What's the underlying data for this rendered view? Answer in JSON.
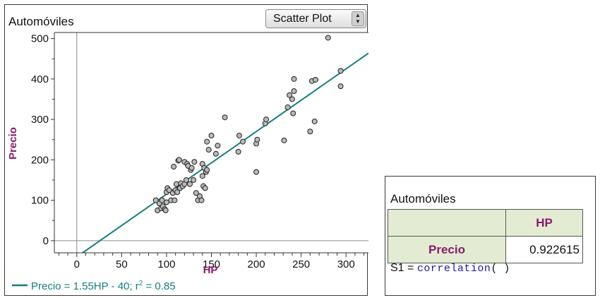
{
  "graph": {
    "title": "Automóviles",
    "plot_type": "Scatter Plot",
    "equation": "Precio = 1.55HP - 40; r",
    "r2_exponent": "2",
    "r2_value": " = 0.85"
  },
  "table": {
    "title": "Automóviles",
    "column_header": "HP",
    "row_header": "Precio",
    "value": "0.922615",
    "formula_prefix": "S1 = ",
    "formula_func": "correlation",
    "formula_args": "(    )"
  },
  "colors": {
    "line": "#14807e",
    "point_fill": "#b9b9b9",
    "axis_label": "#8a1a6e",
    "header_bg": "#e3ecd3"
  },
  "chart_data": {
    "type": "scatter",
    "title": "Automóviles",
    "xlabel": "HP",
    "ylabel": "Precio",
    "xlim": [
      -25,
      325
    ],
    "ylim": [
      -30,
      515
    ],
    "xticks": [
      0,
      50,
      100,
      150,
      200,
      250,
      300
    ],
    "yticks": [
      0,
      100,
      200,
      300,
      400,
      500
    ],
    "regression": {
      "slope": 1.55,
      "intercept": -40,
      "r2": 0.85
    },
    "legend": "bottom",
    "points": [
      [
        88,
        100
      ],
      [
        90,
        75
      ],
      [
        92,
        92
      ],
      [
        94,
        80
      ],
      [
        95,
        100
      ],
      [
        96,
        85
      ],
      [
        98,
        78
      ],
      [
        99,
        75
      ],
      [
        100,
        95
      ],
      [
        100,
        120
      ],
      [
        101,
        130
      ],
      [
        103,
        125
      ],
      [
        105,
        100
      ],
      [
        107,
        118
      ],
      [
        108,
        183
      ],
      [
        109,
        100
      ],
      [
        110,
        125
      ],
      [
        111,
        140
      ],
      [
        112,
        120
      ],
      [
        113,
        198
      ],
      [
        114,
        200
      ],
      [
        115,
        130
      ],
      [
        116,
        142
      ],
      [
        118,
        135
      ],
      [
        120,
        195
      ],
      [
        120,
        140
      ],
      [
        122,
        150
      ],
      [
        123,
        190
      ],
      [
        124,
        185
      ],
      [
        126,
        140
      ],
      [
        127,
        175
      ],
      [
        128,
        180
      ],
      [
        130,
        150
      ],
      [
        131,
        195
      ],
      [
        133,
        118
      ],
      [
        135,
        100
      ],
      [
        137,
        110
      ],
      [
        139,
        100
      ],
      [
        140,
        190
      ],
      [
        140,
        160
      ],
      [
        141,
        135
      ],
      [
        142,
        180
      ],
      [
        143,
        130
      ],
      [
        144,
        170
      ],
      [
        145,
        175
      ],
      [
        145,
        245
      ],
      [
        147,
        225
      ],
      [
        150,
        260
      ],
      [
        155,
        215
      ],
      [
        157,
        235
      ],
      [
        165,
        305
      ],
      [
        180,
        220
      ],
      [
        181,
        260
      ],
      [
        185,
        245
      ],
      [
        200,
        170
      ],
      [
        200,
        240
      ],
      [
        201,
        250
      ],
      [
        210,
        290
      ],
      [
        211,
        300
      ],
      [
        231,
        248
      ],
      [
        235,
        330
      ],
      [
        237,
        360
      ],
      [
        240,
        350
      ],
      [
        241,
        315
      ],
      [
        242,
        370
      ],
      [
        242,
        400
      ],
      [
        260,
        270
      ],
      [
        262,
        395
      ],
      [
        265,
        295
      ],
      [
        266,
        398
      ],
      [
        280,
        502
      ],
      [
        294,
        420
      ],
      [
        294,
        382
      ]
    ]
  }
}
